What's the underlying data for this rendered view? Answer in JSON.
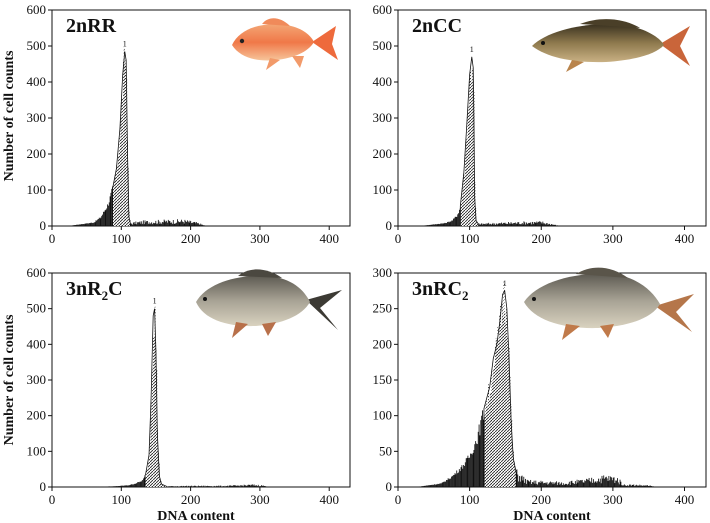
{
  "figure": {
    "ylabel": "Number of cell counts",
    "xlabel": "DNA content"
  },
  "colors": {
    "axis": "#111111",
    "bar": "#111111",
    "hatch": "#111111"
  },
  "chart_data": [
    {
      "type": "histogram",
      "id": "p1",
      "title": "2nRR",
      "title_parts": [
        {
          "t": "2nRR",
          "sub": false
        }
      ],
      "fish": "goldfish",
      "xlabel": "",
      "ylabel": "Number of cell counts",
      "xlim": [
        0,
        430
      ],
      "ylim": [
        0,
        600
      ],
      "xticks": [
        0,
        100,
        200,
        300,
        400
      ],
      "yticks": [
        0,
        100,
        200,
        300,
        400,
        500,
        600
      ],
      "peak_label": "1",
      "baseline": [
        22,
        0
      ],
      "baseline_end": [
        60,
        10
      ],
      "rise": [
        [
          60,
          10
        ],
        [
          70,
          25
        ],
        [
          80,
          60
        ],
        [
          88,
          110
        ],
        [
          93,
          160
        ],
        [
          98,
          270
        ],
        [
          102,
          420
        ],
        [
          105,
          485
        ],
        [
          107,
          460
        ],
        [
          109,
          200
        ],
        [
          111,
          25
        ],
        [
          113,
          8
        ]
      ],
      "solid_until": 87,
      "tail": [
        [
          113,
          8
        ],
        [
          130,
          12
        ],
        [
          160,
          14
        ],
        [
          190,
          15
        ],
        [
          210,
          8
        ],
        [
          222,
          0
        ]
      ]
    },
    {
      "type": "histogram",
      "id": "p2",
      "title": "2nCC",
      "title_parts": [
        {
          "t": "2nCC",
          "sub": false
        }
      ],
      "fish": "carp",
      "xlabel": "",
      "ylabel": "",
      "xlim": [
        0,
        430
      ],
      "ylim": [
        0,
        600
      ],
      "xticks": [
        0,
        100,
        200,
        300,
        400
      ],
      "yticks": [
        0,
        100,
        200,
        300,
        400,
        500,
        600
      ],
      "peak_label": "1",
      "baseline": [
        30,
        0
      ],
      "baseline_end": [
        65,
        8
      ],
      "rise": [
        [
          65,
          8
        ],
        [
          75,
          15
        ],
        [
          82,
          30
        ],
        [
          87,
          55
        ],
        [
          92,
          150
        ],
        [
          96,
          280
        ],
        [
          100,
          420
        ],
        [
          103,
          470
        ],
        [
          105,
          440
        ],
        [
          106,
          300
        ],
        [
          107,
          80
        ],
        [
          109,
          15
        ],
        [
          112,
          6
        ]
      ],
      "solid_until": 87,
      "tail": [
        [
          112,
          6
        ],
        [
          140,
          8
        ],
        [
          170,
          10
        ],
        [
          200,
          11
        ],
        [
          215,
          5
        ],
        [
          225,
          0
        ]
      ]
    },
    {
      "type": "histogram",
      "id": "p3",
      "title": "3nR2C",
      "title_parts": [
        {
          "t": "3nR",
          "sub": false
        },
        {
          "t": "2",
          "sub": true
        },
        {
          "t": "C",
          "sub": false
        }
      ],
      "fish": "triploid-a",
      "xlabel": "DNA content",
      "ylabel": "Number of cell counts",
      "xlim": [
        0,
        430
      ],
      "ylim": [
        0,
        600
      ],
      "xticks": [
        0,
        100,
        200,
        300,
        400
      ],
      "yticks": [
        0,
        100,
        200,
        300,
        400,
        500,
        600
      ],
      "peak_label": "1",
      "baseline": [
        45,
        0
      ],
      "baseline_end": [
        90,
        2
      ],
      "rise": [
        [
          90,
          2
        ],
        [
          110,
          5
        ],
        [
          120,
          10
        ],
        [
          130,
          18
        ],
        [
          135,
          35
        ],
        [
          140,
          90
        ],
        [
          143,
          250
        ],
        [
          146,
          480
        ],
        [
          148,
          500
        ],
        [
          150,
          380
        ],
        [
          152,
          150
        ],
        [
          155,
          30
        ],
        [
          158,
          8
        ],
        [
          165,
          2
        ]
      ],
      "solid_until": 134,
      "tail": [
        [
          165,
          2
        ],
        [
          200,
          3
        ],
        [
          250,
          3
        ],
        [
          290,
          6
        ],
        [
          305,
          4
        ],
        [
          310,
          0
        ]
      ]
    },
    {
      "type": "histogram",
      "id": "p4",
      "title": "3nRC2",
      "title_parts": [
        {
          "t": "3nRC",
          "sub": false
        },
        {
          "t": "2",
          "sub": true
        }
      ],
      "fish": "triploid-b",
      "xlabel": "DNA content",
      "ylabel": "",
      "xlim": [
        0,
        430
      ],
      "ylim": [
        0,
        300
      ],
      "xticks": [
        0,
        100,
        200,
        300,
        400
      ],
      "yticks": [
        0,
        50,
        100,
        150,
        200,
        250,
        300
      ],
      "peak_label": "1",
      "baseline": [
        25,
        0
      ],
      "baseline_end": [
        60,
        5
      ],
      "rise": [
        [
          60,
          5
        ],
        [
          75,
          15
        ],
        [
          90,
          30
        ],
        [
          100,
          45
        ],
        [
          110,
          70
        ],
        [
          120,
          110
        ],
        [
          128,
          140
        ],
        [
          133,
          180
        ],
        [
          138,
          200
        ],
        [
          142,
          230
        ],
        [
          146,
          270
        ],
        [
          149,
          275
        ],
        [
          152,
          250
        ],
        [
          155,
          180
        ],
        [
          158,
          90
        ],
        [
          161,
          40
        ],
        [
          165,
          20
        ]
      ],
      "solid_until": 120,
      "tail": [
        [
          165,
          20
        ],
        [
          180,
          8
        ],
        [
          200,
          7
        ],
        [
          230,
          6
        ],
        [
          260,
          9
        ],
        [
          290,
          14
        ],
        [
          305,
          12
        ],
        [
          315,
          3
        ],
        [
          330,
          3
        ],
        [
          350,
          2
        ],
        [
          360,
          0
        ]
      ]
    }
  ]
}
